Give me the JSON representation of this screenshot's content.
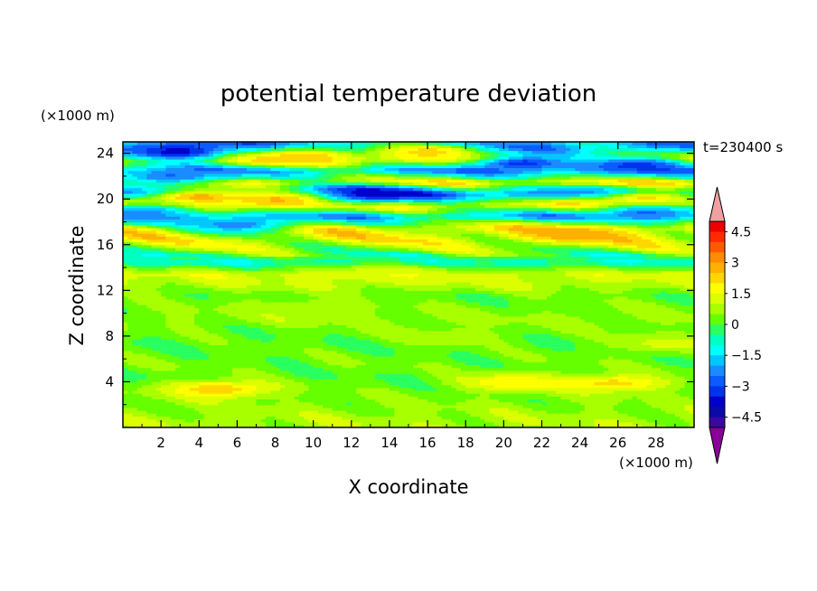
{
  "chart_data": {
    "type": "heatmap",
    "title": "potential temperature deviation",
    "xlabel": "X coordinate",
    "ylabel": "Z coordinate",
    "x_unit": "(×1000 m)",
    "y_unit": "(×1000 m)",
    "time_label": "t=230400 s",
    "xlim": [
      0,
      30
    ],
    "ylim": [
      0,
      25
    ],
    "x_ticks": [
      2,
      4,
      6,
      8,
      10,
      12,
      14,
      16,
      18,
      20,
      22,
      24,
      26,
      28
    ],
    "y_ticks": [
      4,
      8,
      12,
      16,
      20,
      24
    ],
    "colorbar": {
      "levels": [
        -5.0,
        -4.5,
        -4.0,
        -3.5,
        -3.0,
        -2.5,
        -2.0,
        -1.5,
        -1.0,
        -0.5,
        0,
        0.5,
        1.0,
        1.5,
        2.0,
        2.5,
        3.0,
        3.5,
        4.0,
        4.5,
        5.0
      ],
      "tick_labels": [
        "4.5",
        "3",
        "1.5",
        "0",
        "−1.5",
        "−3",
        "−4.5"
      ],
      "tick_values": [
        4.5,
        3,
        1.5,
        0,
        -1.5,
        -3,
        -4.5
      ],
      "colors": [
        "#8a0099",
        "#3a0aa0",
        "#0a0aa8",
        "#0000cc",
        "#0033ee",
        "#0a5cff",
        "#1a8cff",
        "#00c8ff",
        "#00ffff",
        "#00ffc0",
        "#2aff60",
        "#66ff00",
        "#a8ff00",
        "#dcff00",
        "#ffff00",
        "#ffd700",
        "#ffb000",
        "#ff8c00",
        "#ff5a00",
        "#ff2a00",
        "#ee0000",
        "#f0a0a0"
      ]
    },
    "bands": [
      {
        "z": 0.5,
        "value": 0.8
      },
      {
        "z": 1.5,
        "value": 0.6
      },
      {
        "z": 2.5,
        "value": 0.4
      },
      {
        "z": 3.5,
        "value": 0.2
      },
      {
        "z": 4.5,
        "value": 0.1
      },
      {
        "z": 5.5,
        "value": 0.3
      },
      {
        "z": 6.5,
        "value": 0.2
      },
      {
        "z": 7.5,
        "value": 0.1
      },
      {
        "z": 8.5,
        "value": 0.3
      },
      {
        "z": 9.5,
        "value": 0.6
      },
      {
        "z": 10.5,
        "value": 0.4
      },
      {
        "z": 11.5,
        "value": 0.2
      },
      {
        "z": 12.5,
        "value": 0.9
      },
      {
        "z": 13.5,
        "value": 1.2
      },
      {
        "z": 14.5,
        "value": -0.9
      },
      {
        "z": 15.5,
        "value": 0.4
      },
      {
        "z": 16.5,
        "value": 1.4
      },
      {
        "z": 17.5,
        "value": 1.6
      },
      {
        "z": 18.5,
        "value": -1.8
      },
      {
        "z": 19.5,
        "value": 1.8
      },
      {
        "z": 20.5,
        "value": -3.0
      },
      {
        "z": 21.5,
        "value": 1.8
      },
      {
        "z": 22.5,
        "value": -2.0
      },
      {
        "z": 23.5,
        "value": 1.8
      },
      {
        "z": 24.5,
        "value": -2.2
      }
    ],
    "features": [
      {
        "x": 12.5,
        "z": 20.5,
        "value": -4.2
      },
      {
        "x": 4.0,
        "z": 20.2,
        "value": 3.0
      },
      {
        "x": 8.0,
        "z": 20.0,
        "value": 2.6
      },
      {
        "x": 27.5,
        "z": 20.0,
        "value": 2.6
      },
      {
        "x": 3.0,
        "z": 24.2,
        "value": -3.8
      },
      {
        "x": 21.0,
        "z": 23.2,
        "value": -3.4
      },
      {
        "x": 27.0,
        "z": 23.0,
        "value": -3.2
      },
      {
        "x": 2.5,
        "z": 22.0,
        "value": -2.6
      },
      {
        "x": 6.0,
        "z": 17.8,
        "value": -2.4
      },
      {
        "x": 27.5,
        "z": 18.8,
        "value": -2.6
      },
      {
        "x": 1.0,
        "z": 18.9,
        "value": -2.2
      },
      {
        "x": 9.5,
        "z": 23.8,
        "value": 2.4
      },
      {
        "x": 16.0,
        "z": 24.2,
        "value": 2.2
      },
      {
        "x": 24.0,
        "z": 17.0,
        "value": 2.8
      },
      {
        "x": 5.0,
        "z": 3.4,
        "value": 2.4
      },
      {
        "x": 20.5,
        "z": 4.0,
        "value": 2.0
      },
      {
        "x": 25.8,
        "z": 3.9,
        "value": 2.2
      },
      {
        "x": 17.0,
        "z": 8.0,
        "value": 0.9
      },
      {
        "x": 28.5,
        "z": 7.4,
        "value": 1.2
      },
      {
        "x": 9.0,
        "z": 10.5,
        "value": 1.0
      },
      {
        "x": 14.0,
        "z": 13.5,
        "value": 1.5
      }
    ]
  }
}
